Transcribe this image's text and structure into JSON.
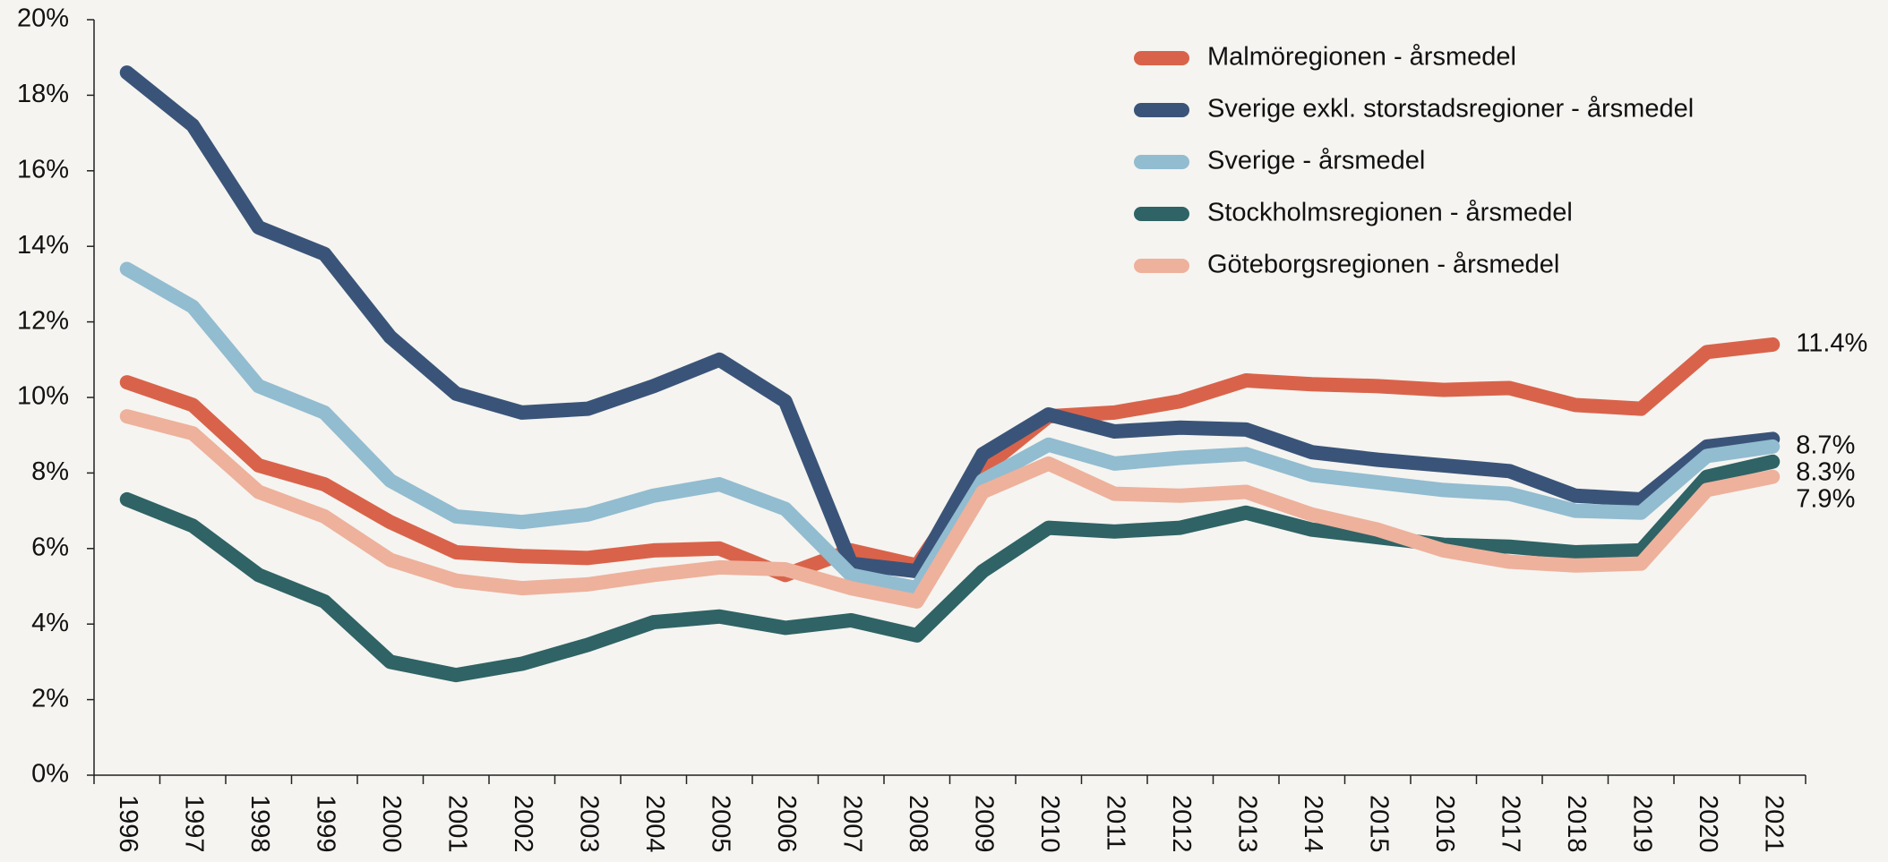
{
  "chart_data": {
    "type": "line",
    "categories": [
      "1996",
      "1997",
      "1998",
      "1999",
      "2000",
      "2001",
      "2002",
      "2003",
      "2004",
      "2005",
      "2006",
      "2007",
      "2008",
      "2009",
      "2010",
      "2011",
      "2012",
      "2013",
      "2014",
      "2015",
      "2016",
      "2017",
      "2018",
      "2019",
      "2020",
      "2021"
    ],
    "series": [
      {
        "name": "Malmöregionen - årsmedel",
        "color": "#d9634a",
        "values": [
          10.4,
          9.8,
          8.2,
          7.7,
          6.7,
          5.9,
          5.8,
          5.75,
          5.95,
          6.0,
          5.3,
          5.95,
          5.55,
          8.1,
          9.5,
          9.6,
          9.9,
          10.45,
          10.35,
          10.3,
          10.2,
          10.25,
          9.8,
          9.7,
          11.2,
          11.4
        ],
        "value_labels": [
          null,
          null,
          null,
          null,
          null,
          null,
          null,
          null,
          null,
          null,
          null,
          null,
          null,
          null,
          null,
          null,
          null,
          null,
          null,
          null,
          null,
          null,
          null,
          null,
          null,
          "11.4%"
        ]
      },
      {
        "name": "Sverige exkl. storstadsregioner - årsmedel",
        "color": "#3a5479",
        "values": [
          18.6,
          17.2,
          14.5,
          13.8,
          11.6,
          10.1,
          9.6,
          9.7,
          10.3,
          11.0,
          9.9,
          5.6,
          5.4,
          8.5,
          9.55,
          9.1,
          9.2,
          9.15,
          8.55,
          8.35,
          8.2,
          8.05,
          7.4,
          7.3,
          8.7,
          8.9
        ]
      },
      {
        "name": "Sverige - årsmedel",
        "color": "#92bcd0",
        "values": [
          13.4,
          12.4,
          10.3,
          9.6,
          7.8,
          6.85,
          6.7,
          6.9,
          7.4,
          7.7,
          7.05,
          5.3,
          4.95,
          7.8,
          8.75,
          8.25,
          8.4,
          8.5,
          7.95,
          7.75,
          7.55,
          7.45,
          7.0,
          6.95,
          8.45,
          8.7
        ],
        "value_labels": [
          null,
          null,
          null,
          null,
          null,
          null,
          null,
          null,
          null,
          null,
          null,
          null,
          null,
          null,
          null,
          null,
          null,
          null,
          null,
          null,
          null,
          null,
          null,
          null,
          null,
          "8.7%"
        ]
      },
      {
        "name": "Stockholmsregionen - årsmedel",
        "color": "#2f6365",
        "values": [
          7.3,
          6.6,
          5.3,
          4.6,
          3.0,
          2.65,
          2.95,
          3.45,
          4.05,
          4.2,
          3.9,
          4.1,
          3.7,
          5.4,
          6.55,
          6.45,
          6.55,
          6.95,
          6.5,
          6.3,
          6.1,
          6.05,
          5.9,
          5.95,
          7.9,
          8.3
        ],
        "value_labels": [
          null,
          null,
          null,
          null,
          null,
          null,
          null,
          null,
          null,
          null,
          null,
          null,
          null,
          null,
          null,
          null,
          null,
          null,
          null,
          null,
          null,
          null,
          null,
          null,
          null,
          "8.3%"
        ]
      },
      {
        "name": "Göteborgsregionen - årsmedel",
        "color": "#eeb19c",
        "values": [
          9.5,
          9.05,
          7.5,
          6.85,
          5.7,
          5.15,
          4.95,
          5.05,
          5.3,
          5.5,
          5.45,
          4.95,
          4.6,
          7.5,
          8.25,
          7.45,
          7.4,
          7.5,
          6.9,
          6.5,
          5.95,
          5.65,
          5.55,
          5.6,
          7.55,
          7.9
        ],
        "value_labels": [
          null,
          null,
          null,
          null,
          null,
          null,
          null,
          null,
          null,
          null,
          null,
          null,
          null,
          null,
          null,
          null,
          null,
          null,
          null,
          null,
          null,
          null,
          null,
          null,
          null,
          "7.9%"
        ]
      }
    ],
    "ylim": [
      0,
      20
    ],
    "yticks": [
      {
        "value": 0,
        "label": "0%"
      },
      {
        "value": 2,
        "label": "2%"
      },
      {
        "value": 4,
        "label": "4%"
      },
      {
        "value": 6,
        "label": "6%"
      },
      {
        "value": 8,
        "label": "8%"
      },
      {
        "value": 10,
        "label": "10%"
      },
      {
        "value": 12,
        "label": "12%"
      },
      {
        "value": 14,
        "label": "14%"
      },
      {
        "value": 16,
        "label": "16%"
      },
      {
        "value": 18,
        "label": "18%"
      },
      {
        "value": 20,
        "label": "20%"
      }
    ],
    "grid": false,
    "legend": "upper right"
  }
}
